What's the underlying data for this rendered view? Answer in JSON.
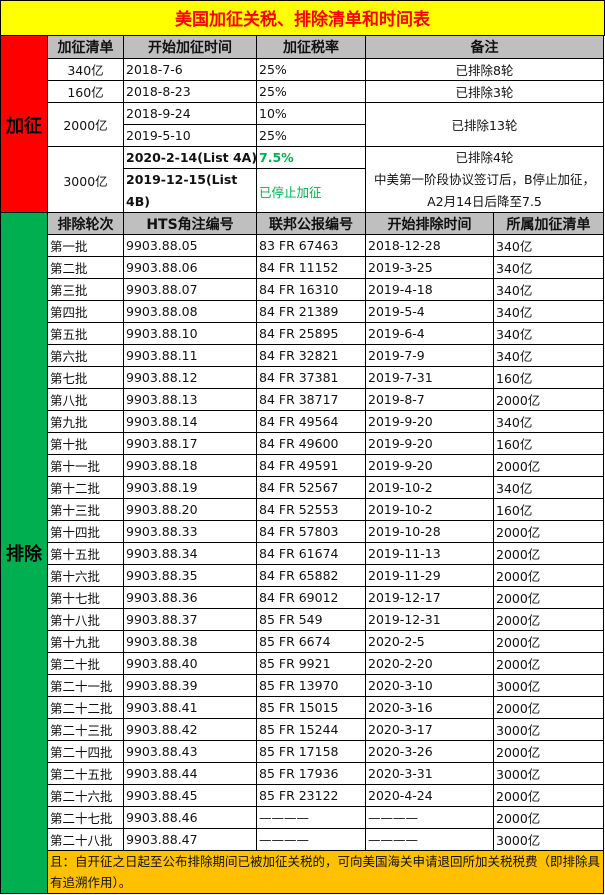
{
  "title": "美国加征关税、排除清单和时间表",
  "tariff": {
    "side_label": "加征",
    "headers": [
      "加征清单",
      "开始加征时间",
      "加征税率",
      "备注"
    ],
    "rows": [
      {
        "list": "340亿",
        "date": "2018-7-6",
        "rate": "25%",
        "note": "已排除8轮"
      },
      {
        "list": "160亿",
        "date": "2018-8-23",
        "rate": "25%",
        "note": "已排除3轮"
      },
      {
        "list": "2000亿",
        "date": "2018-9-24",
        "rate": "10%",
        "note": "已排除13轮"
      },
      {
        "date": "2019-5-10",
        "rate": "25%"
      },
      {
        "list": "3000亿",
        "date": "2020-2-14(List 4A)",
        "rate": "7.5%",
        "note": "已排除4轮\n中美第一阶段协议签订后，B停止加征，A2月14日后降至7.5"
      },
      {
        "date": "2019-12-15(List 4B)",
        "rate": "已停止加征"
      }
    ]
  },
  "exclusion": {
    "side_label": "排除",
    "headers": [
      "排除轮次",
      "HTS角注编号",
      "联邦公报编号",
      "开始排除时间",
      "所属加征清单"
    ],
    "rows": [
      [
        "第一批",
        "9903.88.05",
        "83 FR 67463",
        "2018-12-28",
        "340亿"
      ],
      [
        "第二批",
        "9903.88.06",
        "84 FR 11152",
        "2019-3-25",
        "340亿"
      ],
      [
        "第三批",
        "9903.88.07",
        "84 FR 16310",
        "2019-4-18",
        "340亿"
      ],
      [
        "第四批",
        "9903.88.08",
        "84 FR 21389",
        "2019-5-4",
        "340亿"
      ],
      [
        "第五批",
        "9903.88.10",
        "84 FR 25895",
        "2019-6-4",
        "340亿"
      ],
      [
        "第六批",
        "9903.88.11",
        "84 FR 32821",
        "2019-7-9",
        "340亿"
      ],
      [
        "第七批",
        "9903.88.12",
        "84 FR 37381",
        "2019-7-31",
        "160亿"
      ],
      [
        "第八批",
        "9903.88.13",
        "84 FR 38717",
        "2019-8-7",
        "2000亿"
      ],
      [
        "第九批",
        "9903.88.14",
        "84 FR 49564",
        "2019-9-20",
        "340亿"
      ],
      [
        "第十批",
        "9903.88.17",
        "84 FR 49600",
        "2019-9-20",
        "160亿"
      ],
      [
        "第十一批",
        "9903.88.18",
        "84 FR 49591",
        "2019-9-20",
        "2000亿"
      ],
      [
        "第十二批",
        "9903.88.19",
        "84 FR 52567",
        "2019-10-2",
        "340亿"
      ],
      [
        "第十三批",
        "9903.88.20",
        "84 FR 52553",
        "2019-10-2",
        "160亿"
      ],
      [
        "第十四批",
        "9903.88.33",
        "84 FR 57803",
        "2019-10-28",
        "2000亿"
      ],
      [
        "第十五批",
        "9903.88.34",
        "84 FR 61674",
        "2019-11-13",
        "2000亿"
      ],
      [
        "第十六批",
        "9903.88.35",
        "84 FR 65882",
        "2019-11-29",
        "2000亿"
      ],
      [
        "第十七批",
        "9903.88.36",
        "84 FR 69012",
        "2019-12-17",
        "2000亿"
      ],
      [
        "第十八批",
        "9903.88.37",
        "85 FR 549",
        "2019-12-31",
        "2000亿"
      ],
      [
        "第十九批",
        "9903.88.38",
        "85 FR 6674",
        "2020-2-5",
        "2000亿"
      ],
      [
        "第二十批",
        "9903.88.40",
        "85 FR 9921",
        "2020-2-20",
        "2000亿"
      ],
      [
        "第二十一批",
        "9903.88.39",
        "85 FR 13970",
        "2020-3-10",
        "3000亿"
      ],
      [
        "第二十二批",
        "9903.88.41",
        "85 FR 15015",
        "2020-3-16",
        "2000亿"
      ],
      [
        "第二十三批",
        "9903.88.42",
        "85 FR 15244",
        "2020-3-17",
        "3000亿"
      ],
      [
        "第二十四批",
        "9903.88.43",
        "85 FR 17158",
        "2020-3-26",
        "2000亿"
      ],
      [
        "第二十五批",
        "9903.88.44",
        "85 FR 17936",
        "2020-3-31",
        "3000亿"
      ],
      [
        "第二十六批",
        "9903.88.45",
        "85 FR 23122",
        "2020-4-24",
        "2000亿"
      ],
      [
        "第二十七批",
        "9903.88.46",
        "————",
        "————",
        "2000亿"
      ],
      [
        "第二十八批",
        "9903.88.47",
        "————",
        "————",
        "3000亿"
      ]
    ],
    "footnote": "且：自开征之日起至公布排除期间已被加征关税的，可向美国海关申请退回所加关税税费（即排除具有追溯作用）。"
  },
  "colors": {
    "title_bg": "#ffff00",
    "title_text": "#ff0000",
    "tariff_side": "#ff0000",
    "exclusion_side": "#00b050",
    "header_bg": "#bfbfbf",
    "footnote_bg": "#ffc000",
    "highlight_text": "#00b050"
  }
}
